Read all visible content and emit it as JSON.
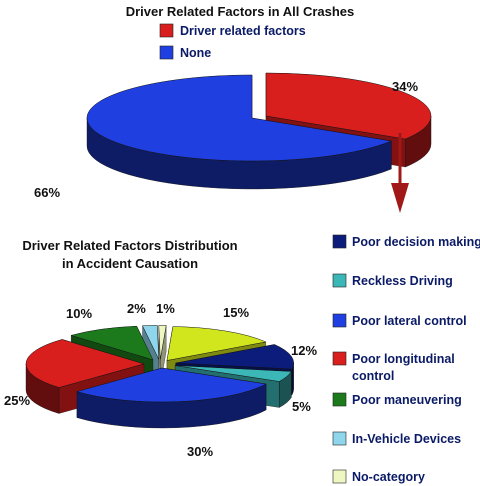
{
  "chart_data": [
    {
      "type": "pie",
      "title": "Driver Related Factors in All Crashes",
      "series": [
        {
          "name": "Driver related factors",
          "value": 34,
          "label": "34%",
          "color": "#d91e1e"
        },
        {
          "name": "None",
          "value": 66,
          "label": "66%",
          "color": "#1f3fe0"
        }
      ],
      "legend_position": "top"
    },
    {
      "type": "pie",
      "title_lines": [
        "Driver Related Factors Distribution",
        "in Accident Causation"
      ],
      "series": [
        {
          "name": "Poor decision making",
          "value": 12,
          "label": "12%",
          "color": "#0c1c7a"
        },
        {
          "name": "Reckless Driving",
          "value": 5,
          "label": "5%",
          "color": "#3bb7b7"
        },
        {
          "name": "Poor lateral control",
          "value": 30,
          "label": "30%",
          "color": "#1f3fe0"
        },
        {
          "name": "Poor longitudinal control",
          "legend_lines": [
            "Poor longitudinal",
            "control"
          ],
          "value": 25,
          "label": "25%",
          "color": "#d91e1e"
        },
        {
          "name": "Poor maneuvering",
          "value": 10,
          "label": "10%",
          "color": "#1c7a1c"
        },
        {
          "name": "In-Vehicle Devices",
          "value": 2,
          "label": "2%",
          "color": "#8fd6ec"
        },
        {
          "name": "No-category",
          "value": 1,
          "label": "1%",
          "color": "#eef7c2"
        },
        {
          "name": "",
          "value": 15,
          "label": "15%",
          "color": "#d2e61e"
        }
      ],
      "legend_position": "right"
    }
  ]
}
